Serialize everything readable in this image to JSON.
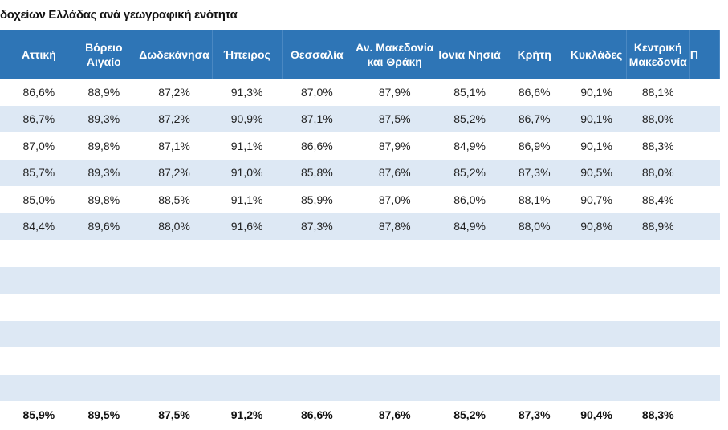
{
  "title": "δοχείων Ελλάδας ανά γεωγραφική ενότητα",
  "columns": [
    "Αττική",
    "Βόρειο Αιγαίο",
    "Δωδεκάνησα",
    "Ήπειρος",
    "Θεσσαλία",
    "Αν. Μακεδονία και Θράκη",
    "Ιόνια Νησιά",
    "Κρήτη",
    "Κυκλάδες",
    "Κεντρική Μακεδονία",
    "Π"
  ],
  "rows": [
    [
      "86,6%",
      "88,9%",
      "87,2%",
      "91,3%",
      "87,0%",
      "87,9%",
      "85,1%",
      "86,6%",
      "90,1%",
      "88,1%",
      ""
    ],
    [
      "86,7%",
      "89,3%",
      "87,2%",
      "90,9%",
      "87,1%",
      "87,5%",
      "85,2%",
      "86,7%",
      "90,1%",
      "88,0%",
      ""
    ],
    [
      "87,0%",
      "89,8%",
      "87,1%",
      "91,1%",
      "86,6%",
      "87,9%",
      "84,9%",
      "86,9%",
      "90,1%",
      "88,3%",
      ""
    ],
    [
      "85,7%",
      "89,3%",
      "87,2%",
      "91,0%",
      "85,8%",
      "87,6%",
      "85,2%",
      "87,3%",
      "90,5%",
      "88,0%",
      ""
    ],
    [
      "85,0%",
      "89,8%",
      "88,5%",
      "91,1%",
      "85,9%",
      "87,0%",
      "86,0%",
      "88,1%",
      "90,7%",
      "88,4%",
      ""
    ],
    [
      "84,4%",
      "89,6%",
      "88,0%",
      "91,6%",
      "87,3%",
      "87,8%",
      "84,9%",
      "88,0%",
      "90,8%",
      "88,9%",
      ""
    ]
  ],
  "empty_rows": 6,
  "totals": [
    "85,9%",
    "89,5%",
    "87,5%",
    "91,2%",
    "86,6%",
    "87,6%",
    "85,2%",
    "87,3%",
    "90,4%",
    "88,3%",
    ""
  ],
  "colors": {
    "header": "#2e75b6",
    "stripe": "#dde8f4"
  }
}
